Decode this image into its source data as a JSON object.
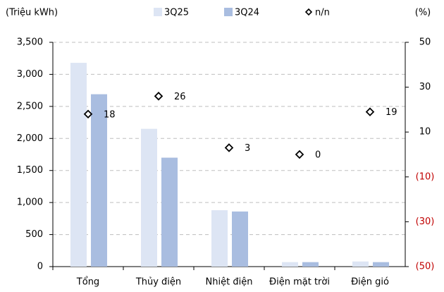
{
  "chart_data": {
    "type": "bar",
    "y_label": "(Triệu kWh)",
    "y2_label": "(%)",
    "categories": [
      "Tổng",
      "Thủy điện",
      "Nhiệt điện",
      "Điện mặt trời",
      "Điện gió"
    ],
    "series": [
      {
        "name": "3Q25",
        "color": "#dde5f4",
        "values": [
          3180,
          2150,
          880,
          70,
          80
        ]
      },
      {
        "name": "3Q24",
        "color": "#a9bde0",
        "values": [
          2690,
          1700,
          860,
          70,
          70
        ]
      },
      {
        "name": "n/n",
        "type": "scatter",
        "marker": "diamond",
        "axis": "y2",
        "color": "#000000",
        "values": [
          18,
          26,
          3,
          0,
          19
        ]
      }
    ],
    "ylim": [
      0,
      3500
    ],
    "yticks": [
      0,
      500,
      {
        "value": 1000,
        "label": "1,000"
      },
      {
        "value": 1500,
        "label": "1,500"
      },
      {
        "value": 2000,
        "label": "2,000"
      },
      {
        "value": 2500,
        "label": "2,500"
      },
      {
        "value": 3000,
        "label": "3,000"
      },
      {
        "value": 3500,
        "label": "3,500"
      }
    ],
    "y2lim": [
      -50,
      50
    ],
    "y2ticks": [
      {
        "value": -50,
        "label": "(50)"
      },
      {
        "value": -30,
        "label": "(30)"
      },
      {
        "value": -10,
        "label": "(10)"
      },
      10,
      30,
      50
    ],
    "y2_negative_color": "#c00000",
    "grid": true
  }
}
